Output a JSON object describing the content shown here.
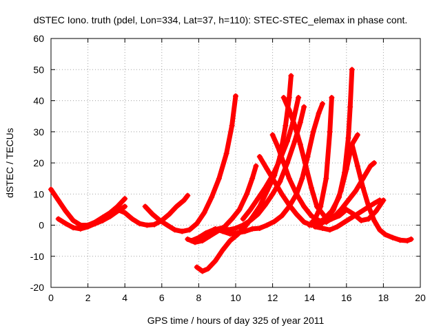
{
  "chart_data": {
    "type": "scatter",
    "title": "dSTEC Iono. truth (pdel, Lon=334, Lat=37, h=110): STEC-STEC_elemax in phase cont.",
    "xlabel": "GPS time / hours of day 325 of year 2011",
    "ylabel": "dSTEC  / TECUs",
    "xlim": [
      0,
      20
    ],
    "ylim": [
      -20,
      60
    ],
    "xticks": [
      "0",
      "2",
      "4",
      "6",
      "8",
      "10",
      "12",
      "14",
      "16",
      "18",
      "20"
    ],
    "yticks": [
      "-20",
      "-10",
      "0",
      "10",
      "20",
      "30",
      "40",
      "50",
      "60"
    ],
    "grid": true,
    "marker": "+",
    "color": "#ff0000",
    "series": [
      {
        "points": [
          [
            0.0,
            11.5
          ],
          [
            0.4,
            8
          ],
          [
            0.8,
            4.5
          ],
          [
            1.2,
            1.5
          ],
          [
            1.6,
            0
          ],
          [
            2.0,
            0
          ],
          [
            2.4,
            1
          ],
          [
            2.8,
            2.5
          ],
          [
            3.2,
            4
          ],
          [
            3.6,
            6
          ],
          [
            4.0,
            8.5
          ]
        ]
      },
      {
        "points": [
          [
            0.4,
            2
          ],
          [
            0.8,
            0.5
          ],
          [
            1.2,
            -0.8
          ],
          [
            1.6,
            -1.2
          ],
          [
            2.0,
            -0.5
          ],
          [
            2.4,
            0.5
          ],
          [
            2.8,
            1.5
          ],
          [
            3.2,
            2.8
          ],
          [
            3.6,
            4.5
          ],
          [
            4.0,
            6
          ]
        ]
      },
      {
        "points": [
          [
            2.4,
            0.5
          ],
          [
            2.8,
            1.5
          ],
          [
            3.2,
            3.5
          ],
          [
            3.6,
            5
          ],
          [
            4.0,
            4
          ],
          [
            4.4,
            2
          ],
          [
            4.8,
            0.5
          ],
          [
            5.2,
            0
          ],
          [
            5.6,
            0.2
          ],
          [
            6.0,
            1.5
          ],
          [
            6.4,
            3.5
          ],
          [
            6.8,
            6
          ],
          [
            7.2,
            8
          ],
          [
            7.4,
            9.5
          ]
        ]
      },
      {
        "points": [
          [
            5.1,
            6
          ],
          [
            5.5,
            3.5
          ],
          [
            5.9,
            1.5
          ],
          [
            6.3,
            0
          ],
          [
            6.7,
            -1.5
          ],
          [
            7.1,
            -2
          ],
          [
            7.5,
            -1.5
          ],
          [
            7.9,
            0.5
          ],
          [
            8.3,
            4
          ],
          [
            8.7,
            9
          ],
          [
            9.1,
            15
          ],
          [
            9.5,
            23
          ],
          [
            9.8,
            32
          ],
          [
            10.0,
            41.5
          ]
        ]
      },
      {
        "points": [
          [
            7.4,
            -4.5
          ],
          [
            7.8,
            -5.5
          ],
          [
            8.2,
            -5
          ],
          [
            8.6,
            -3.5
          ],
          [
            9.0,
            -2
          ],
          [
            9.4,
            -0.5
          ],
          [
            9.8,
            2
          ],
          [
            10.2,
            5
          ],
          [
            10.6,
            10
          ],
          [
            10.9,
            15
          ],
          [
            11.1,
            19
          ]
        ]
      },
      {
        "points": [
          [
            7.9,
            -13.5
          ],
          [
            8.2,
            -14.8
          ],
          [
            8.5,
            -14
          ],
          [
            8.9,
            -11.5
          ],
          [
            9.3,
            -8
          ],
          [
            9.7,
            -5
          ],
          [
            10.1,
            -3
          ],
          [
            10.5,
            -0.5
          ],
          [
            10.9,
            2.5
          ],
          [
            11.3,
            6
          ],
          [
            11.7,
            11
          ],
          [
            12.1,
            16
          ],
          [
            12.4,
            22
          ],
          [
            12.7,
            32
          ],
          [
            12.9,
            41
          ],
          [
            13.0,
            48
          ]
        ]
      },
      {
        "points": [
          [
            7.6,
            -5
          ],
          [
            8.0,
            -4
          ],
          [
            8.4,
            -2.5
          ],
          [
            8.8,
            -1.5
          ],
          [
            9.2,
            -1
          ],
          [
            9.6,
            -1.5
          ],
          [
            10.0,
            -1
          ],
          [
            10.4,
            0
          ],
          [
            10.8,
            1.5
          ],
          [
            11.2,
            3.5
          ],
          [
            11.6,
            6.5
          ],
          [
            12.0,
            10
          ],
          [
            12.4,
            14
          ],
          [
            12.8,
            20
          ],
          [
            13.2,
            27
          ],
          [
            13.5,
            33
          ],
          [
            13.7,
            38
          ]
        ]
      },
      {
        "points": [
          [
            8.9,
            -1.2
          ],
          [
            9.3,
            -2
          ],
          [
            9.7,
            -2.8
          ],
          [
            10.1,
            -2.5
          ],
          [
            10.5,
            -2
          ],
          [
            10.9,
            -1.2
          ],
          [
            11.3,
            -1
          ],
          [
            11.7,
            0
          ],
          [
            12.1,
            1.2
          ],
          [
            12.5,
            3
          ],
          [
            12.9,
            6
          ],
          [
            13.3,
            10
          ],
          [
            13.6,
            15
          ],
          [
            13.9,
            22
          ],
          [
            14.2,
            30
          ],
          [
            14.5,
            36
          ],
          [
            14.7,
            39
          ]
        ]
      },
      {
        "points": [
          [
            10.4,
            2
          ],
          [
            10.8,
            5
          ],
          [
            11.2,
            8.5
          ],
          [
            11.6,
            12
          ],
          [
            12.0,
            16
          ],
          [
            12.4,
            21
          ],
          [
            12.8,
            27
          ],
          [
            13.1,
            33
          ],
          [
            13.4,
            41
          ]
        ]
      },
      {
        "points": [
          [
            11.3,
            22
          ],
          [
            11.7,
            18
          ],
          [
            12.1,
            14
          ],
          [
            12.5,
            10
          ],
          [
            12.9,
            6.5
          ],
          [
            13.3,
            3.5
          ],
          [
            13.7,
            1
          ],
          [
            14.1,
            0
          ],
          [
            14.5,
            0
          ],
          [
            14.9,
            1.5
          ],
          [
            15.3,
            5
          ],
          [
            15.7,
            11
          ],
          [
            16.0,
            18
          ],
          [
            16.3,
            26
          ],
          [
            16.6,
            29
          ]
        ]
      },
      {
        "points": [
          [
            12.0,
            29
          ],
          [
            12.3,
            25
          ],
          [
            12.6,
            20
          ],
          [
            12.9,
            15
          ],
          [
            13.3,
            10
          ],
          [
            13.7,
            6
          ],
          [
            14.1,
            3
          ],
          [
            14.5,
            1.5
          ],
          [
            14.9,
            1
          ],
          [
            15.3,
            2.5
          ],
          [
            15.7,
            5
          ],
          [
            16.1,
            8
          ],
          [
            16.5,
            11
          ],
          [
            16.9,
            15
          ],
          [
            17.3,
            19
          ],
          [
            17.5,
            20
          ]
        ]
      },
      {
        "points": [
          [
            12.6,
            41
          ],
          [
            12.9,
            37
          ],
          [
            13.2,
            32
          ],
          [
            13.5,
            26
          ],
          [
            13.8,
            19
          ],
          [
            14.1,
            12
          ],
          [
            14.4,
            6
          ],
          [
            14.8,
            3
          ],
          [
            15.2,
            2
          ],
          [
            15.6,
            3
          ],
          [
            16.0,
            5
          ],
          [
            16.4,
            3.5
          ],
          [
            16.8,
            1.5
          ],
          [
            17.2,
            2
          ],
          [
            17.6,
            4.5
          ],
          [
            18.0,
            8
          ]
        ]
      },
      {
        "points": [
          [
            14.0,
            0
          ],
          [
            14.3,
            2
          ],
          [
            14.6,
            6
          ],
          [
            14.9,
            15
          ],
          [
            15.1,
            30
          ],
          [
            15.2,
            41
          ]
        ]
      },
      {
        "points": [
          [
            14.4,
            0.5
          ],
          [
            14.8,
            2
          ],
          [
            15.2,
            4.5
          ],
          [
            15.6,
            9
          ],
          [
            15.9,
            17
          ],
          [
            16.1,
            28
          ],
          [
            16.2,
            38
          ],
          [
            16.3,
            50
          ]
        ]
      },
      {
        "points": [
          [
            14.3,
            -0.5
          ],
          [
            14.7,
            -1
          ],
          [
            15.1,
            -1.5
          ],
          [
            15.5,
            -0.5
          ],
          [
            15.9,
            1
          ],
          [
            16.3,
            2.5
          ],
          [
            16.7,
            4
          ],
          [
            17.1,
            5.5
          ],
          [
            17.5,
            7
          ],
          [
            17.8,
            8
          ]
        ]
      },
      {
        "points": [
          [
            16.3,
            26
          ],
          [
            16.6,
            19
          ],
          [
            16.9,
            12
          ],
          [
            17.2,
            6
          ],
          [
            17.5,
            1.5
          ],
          [
            17.8,
            -1.5
          ],
          [
            18.1,
            -3
          ],
          [
            18.5,
            -4
          ],
          [
            18.9,
            -4.8
          ],
          [
            19.3,
            -5
          ],
          [
            19.5,
            -4.5
          ]
        ]
      }
    ]
  }
}
